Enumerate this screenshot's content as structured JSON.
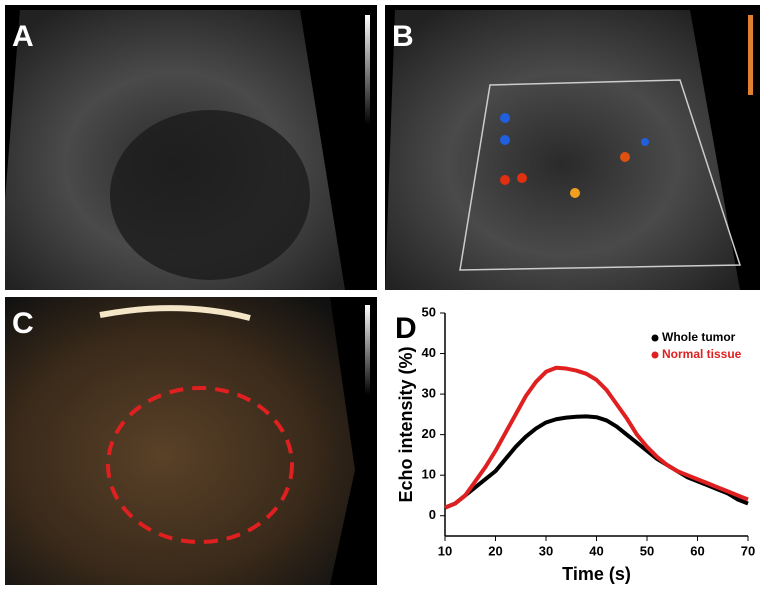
{
  "panels": [
    {
      "label": "A"
    },
    {
      "label": "B"
    },
    {
      "label": "C"
    }
  ],
  "chart_data": {
    "type": "line",
    "panel_label": "D",
    "xlabel": "Time (s)",
    "ylabel": "Echo intensity (%)",
    "xlim": [
      10,
      70
    ],
    "ylim": [
      -5,
      50
    ],
    "xticks": [
      10,
      20,
      30,
      40,
      50,
      60,
      70
    ],
    "yticks": [
      0,
      10,
      20,
      30,
      40,
      50
    ],
    "legend": "upper right",
    "x": [
      10,
      12,
      14,
      16,
      18,
      20,
      22,
      24,
      26,
      28,
      30,
      32,
      34,
      36,
      38,
      40,
      42,
      44,
      46,
      48,
      50,
      52,
      54,
      56,
      58,
      60,
      62,
      64,
      66,
      68,
      70
    ],
    "series": [
      {
        "name": "Whole tumor",
        "color": "#000000",
        "values": [
          2,
          3,
          5,
          7,
          9,
          11,
          14,
          17,
          19.5,
          21.5,
          23,
          23.8,
          24.2,
          24.4,
          24.5,
          24.3,
          23.5,
          22,
          20,
          18,
          16,
          14,
          12.5,
          11,
          9.5,
          8.5,
          7.5,
          6.5,
          5.5,
          4,
          3
        ]
      },
      {
        "name": "Normal tissue",
        "color": "#e02020",
        "values": [
          2,
          3,
          5,
          8.5,
          12,
          16,
          20.5,
          25,
          29.5,
          33,
          35.5,
          36.5,
          36.3,
          35.8,
          35,
          33.5,
          31,
          27.5,
          24,
          20,
          17,
          14.5,
          12.5,
          11,
          10,
          9,
          8,
          7,
          6,
          5,
          4
        ]
      }
    ]
  }
}
